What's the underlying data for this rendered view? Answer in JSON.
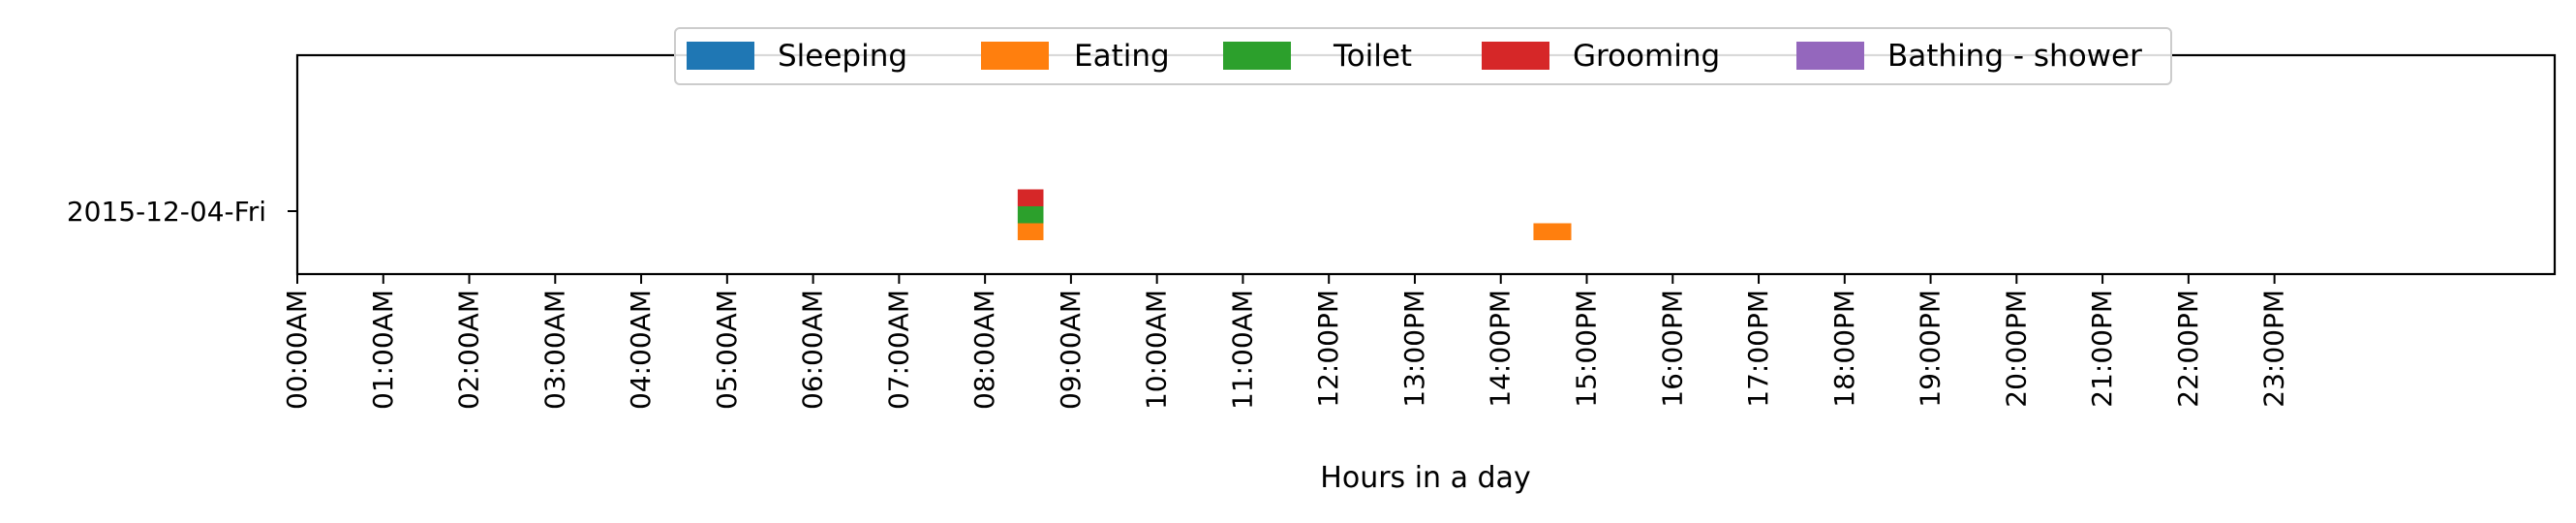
{
  "chart_data": {
    "type": "bar",
    "title": "",
    "xlabel": "Hours in a day",
    "ylabel": "",
    "xlim": [
      0,
      24
    ],
    "x_ticks": [
      "00:00AM",
      "01:00AM",
      "02:00AM",
      "03:00AM",
      "04:00AM",
      "05:00AM",
      "06:00AM",
      "07:00AM",
      "08:00AM",
      "09:00AM",
      "10:00AM",
      "11:00AM",
      "12:00PM",
      "13:00PM",
      "14:00PM",
      "15:00PM",
      "16:00PM",
      "17:00PM",
      "18:00PM",
      "19:00PM",
      "20:00PM",
      "21:00PM",
      "22:00PM",
      "23:00PM"
    ],
    "categories": [
      "2015-12-04-Fri"
    ],
    "legend_position": "top-center",
    "grid": false,
    "series": [
      {
        "name": "Sleeping",
        "color": "#1f77b4",
        "intervals": []
      },
      {
        "name": "Eating",
        "color": "#ff7f0e",
        "intervals": [
          {
            "day": "2015-12-04-Fri",
            "start": 8.38,
            "end": 8.68
          },
          {
            "day": "2015-12-04-Fri",
            "start": 14.38,
            "end": 14.82
          }
        ]
      },
      {
        "name": "Toilet",
        "color": "#2ca02c",
        "intervals": [
          {
            "day": "2015-12-04-Fri",
            "start": 8.38,
            "end": 8.68
          }
        ]
      },
      {
        "name": "Grooming",
        "color": "#d62728",
        "intervals": [
          {
            "day": "2015-12-04-Fri",
            "start": 8.38,
            "end": 8.68
          }
        ]
      },
      {
        "name": "Bathing - shower",
        "color": "#9467bd",
        "intervals": []
      }
    ]
  }
}
